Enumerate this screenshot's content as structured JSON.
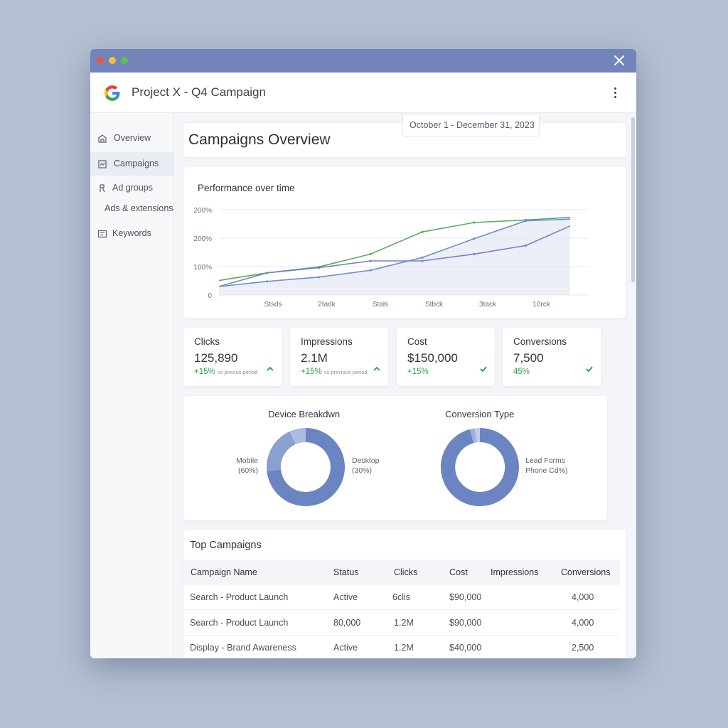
{
  "window": {
    "title": "Project X - Q4 Campaign"
  },
  "sidebar": {
    "items": [
      {
        "label": "Overview",
        "icon": "home-icon"
      },
      {
        "label": "Campaigns",
        "icon": "campaign-icon",
        "active": true
      },
      {
        "label": "Ad groups",
        "icon": "ad-groups-icon"
      },
      {
        "label": "Ads & extensions",
        "icon": ""
      },
      {
        "label": "Keywords",
        "icon": "keywords-icon"
      }
    ]
  },
  "main": {
    "title": "Campaigns Overview",
    "date_range": "October 1 - December 31, 2023"
  },
  "performance": {
    "title": "Performance over time"
  },
  "chart_data": {
    "type": "line",
    "title": "Performance over time",
    "y_tick_labels": [
      "0",
      "100%",
      "200%",
      "200%"
    ],
    "x_tick_labels": [
      "Stsds",
      "2tadk",
      "Stals",
      "Stbck",
      "3tack",
      "10rck"
    ],
    "series": [
      {
        "color": "#5aab62",
        "values": [
          [
            0,
            0.17
          ],
          [
            0.13,
            0.26
          ],
          [
            0.27,
            0.33
          ],
          [
            0.41,
            0.48
          ],
          [
            0.55,
            0.74
          ],
          [
            0.69,
            0.85
          ],
          [
            0.83,
            0.88
          ],
          [
            0.95,
            0.91
          ]
        ]
      },
      {
        "color": "#7a80c4",
        "values": [
          [
            0,
            0.1
          ],
          [
            0.13,
            0.26
          ],
          [
            0.27,
            0.32
          ],
          [
            0.41,
            0.4
          ],
          [
            0.55,
            0.4
          ],
          [
            0.69,
            0.48
          ],
          [
            0.83,
            0.58
          ],
          [
            0.95,
            0.81
          ]
        ]
      },
      {
        "color": "#6c8ed0",
        "values": [
          [
            0,
            0.1
          ],
          [
            0.13,
            0.16
          ],
          [
            0.27,
            0.21
          ],
          [
            0.41,
            0.29
          ],
          [
            0.55,
            0.44
          ],
          [
            0.69,
            0.66
          ],
          [
            0.83,
            0.87
          ],
          [
            0.95,
            0.89
          ]
        ]
      }
    ]
  },
  "metrics": [
    {
      "label": "Clicks",
      "value": "125,890",
      "change": "+15%",
      "sub": "vs previus period",
      "icon": "chevron-up-icon"
    },
    {
      "label": "Impressions",
      "value": "2.1M",
      "change": "+15%",
      "sub": "vs previous period",
      "icon": "chevron-up-icon"
    },
    {
      "label": "Cost",
      "value": "$150,000",
      "change": "+15%",
      "sub": "",
      "icon": "check-icon"
    },
    {
      "label": "Conversions",
      "value": "7,500",
      "change": "45%",
      "sub": "",
      "icon": "check-icon"
    }
  ],
  "device_breakdown": {
    "title": "Device Breakdwn",
    "left_label": "Mobile",
    "left_pct": "(60%)",
    "right_label": "Desktop",
    "right_pct": "(30%)"
  },
  "conversion_type": {
    "title": "Conversion Type",
    "label1": "Lead Forms",
    "label2": "Phone Cd%)"
  },
  "top_campaigns": {
    "title": "Top Campaigns",
    "columns": [
      "Campaign Name",
      "Status",
      "Clicks",
      "Cost",
      "Impressions",
      "Conversions"
    ],
    "rows": [
      [
        "Search - Product Launch",
        "Active",
        "6clis",
        "$90,000",
        "",
        "4,000"
      ],
      [
        "Search - Product Launch",
        "80,000",
        "1.2M",
        "$90,000",
        "",
        "4,000"
      ],
      [
        "Display - Brand Awareness",
        "Active",
        "1.2M",
        "$40,000",
        "",
        "2,500"
      ]
    ]
  },
  "colors": {
    "titlebar": "#7284b8",
    "accent": "#6b84c2",
    "positive": "#2e9e46"
  }
}
